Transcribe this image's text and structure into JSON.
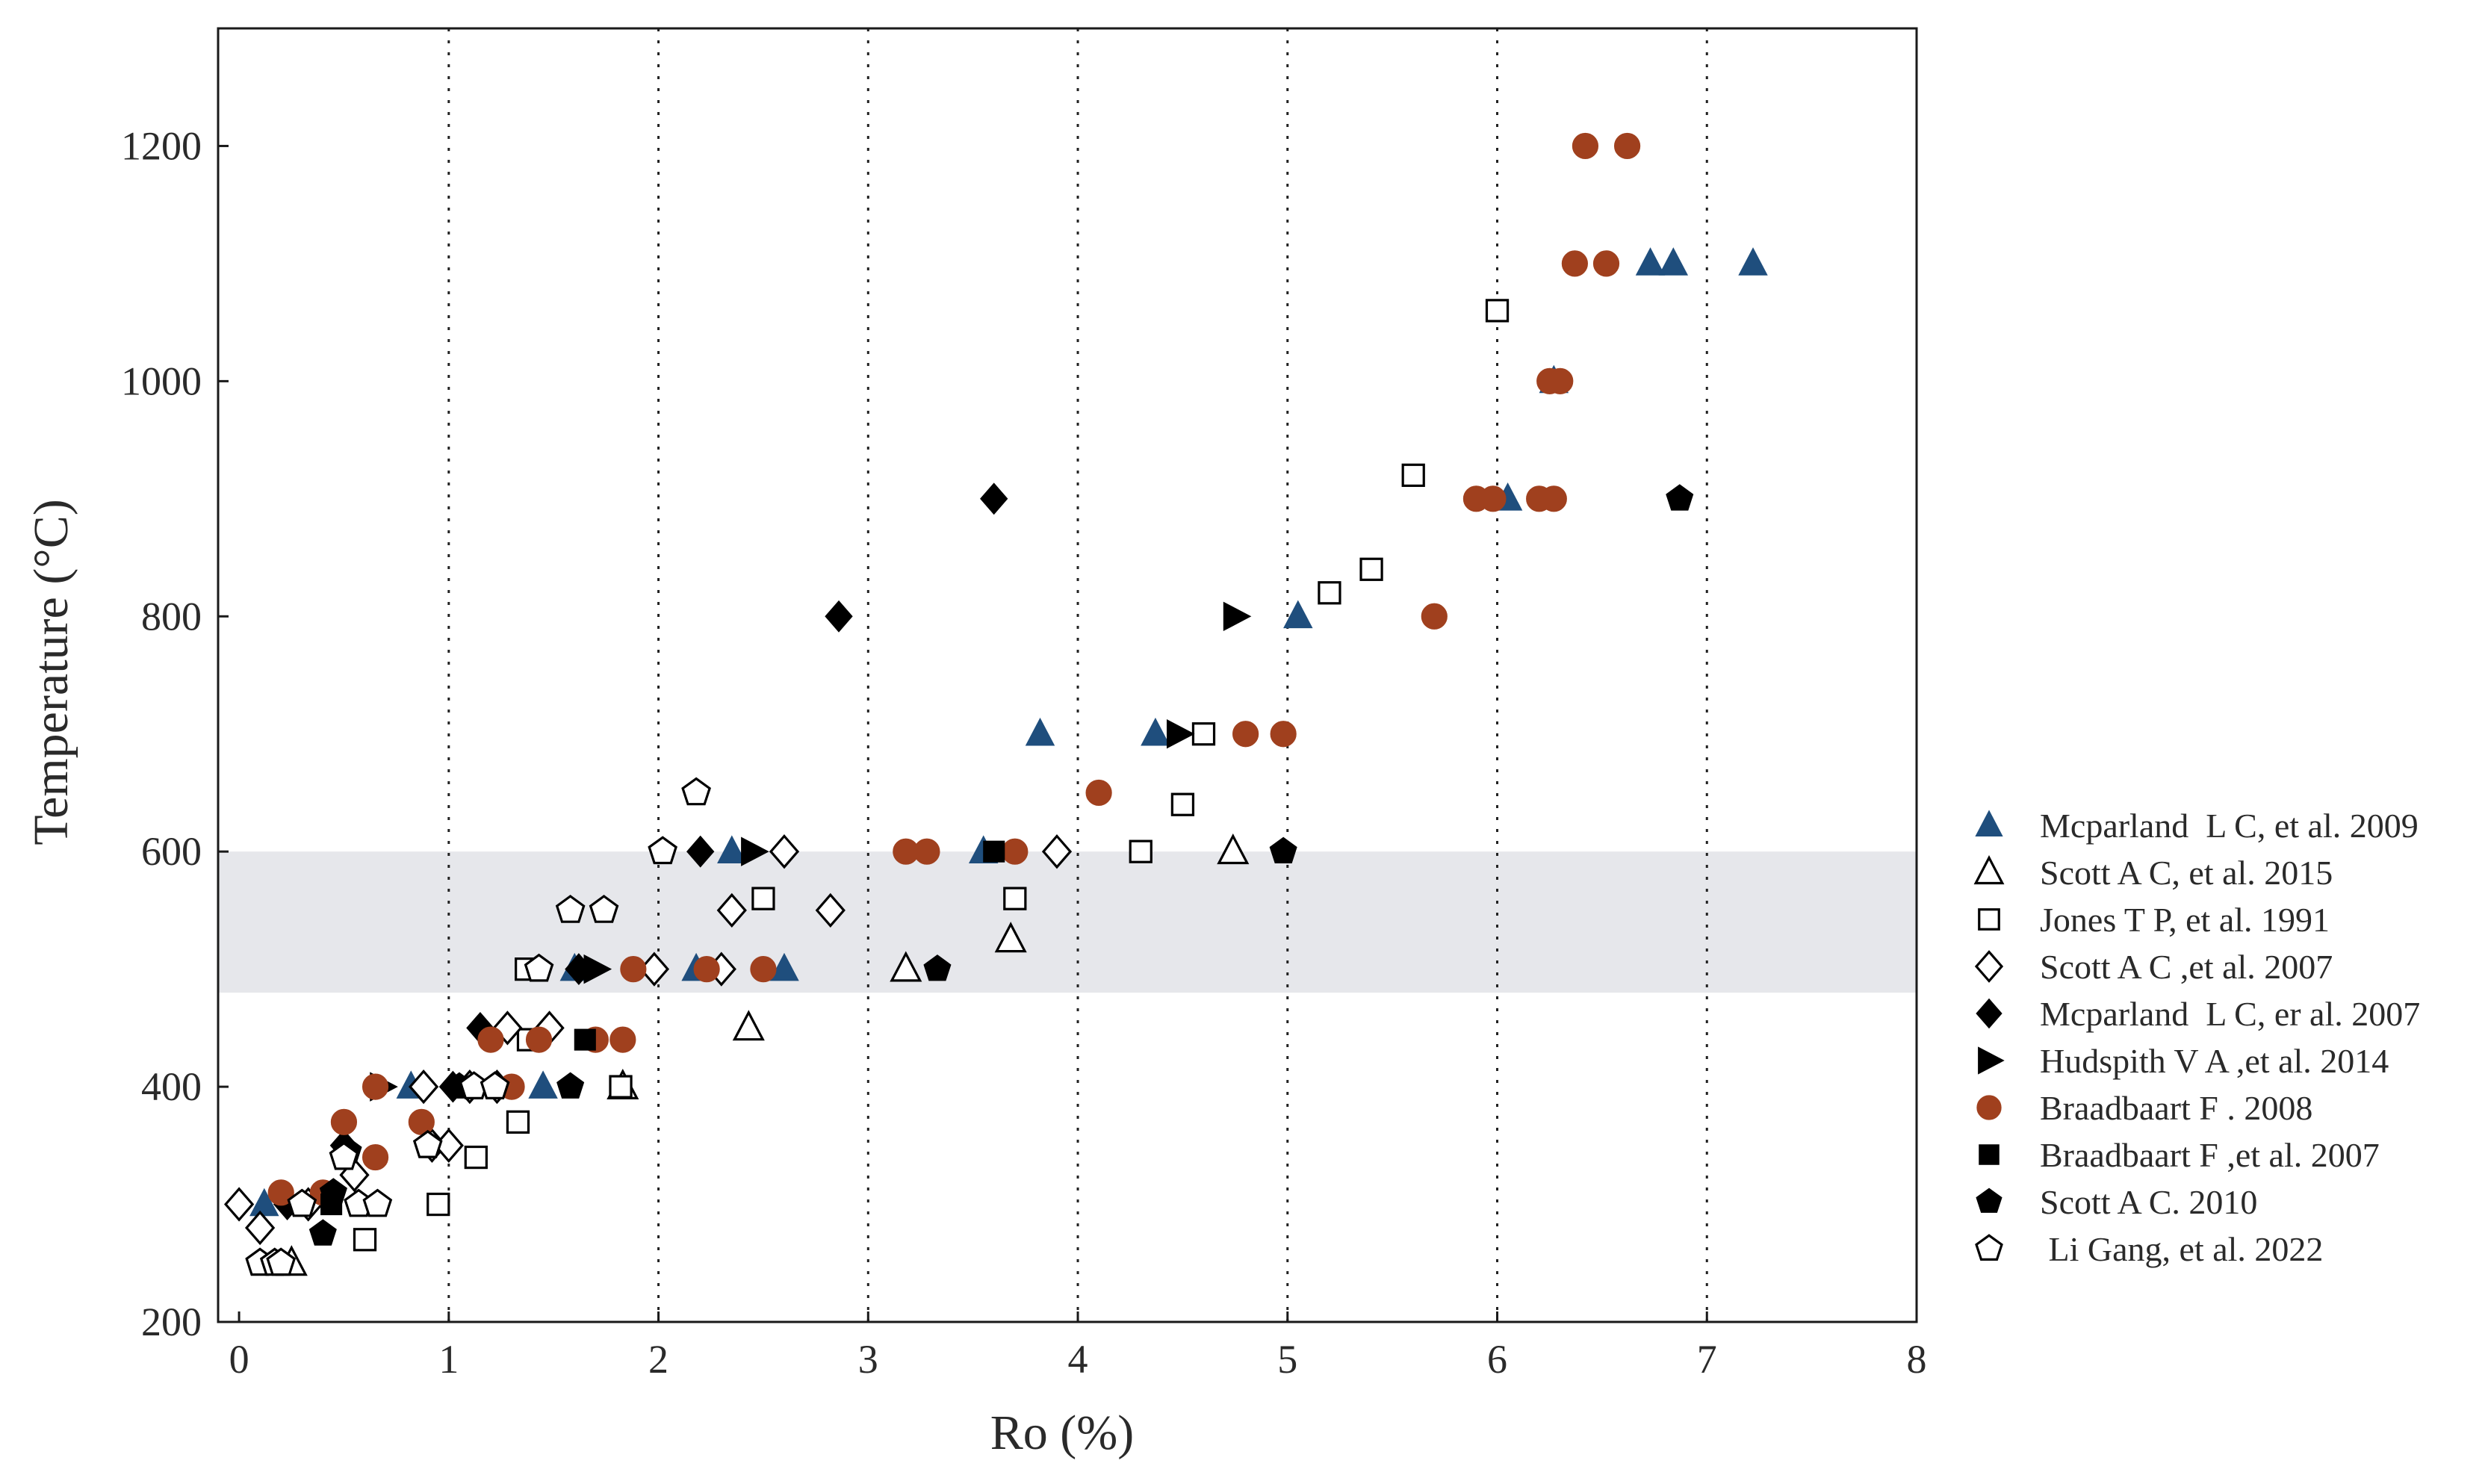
{
  "chart_data": {
    "type": "scatter",
    "title": "",
    "xlabel": "Ro (%)",
    "ylabel": "Temperature (°C)",
    "xlim": [
      -0.1,
      8
    ],
    "ylim": [
      200,
      1300
    ],
    "xticks": [
      0,
      1,
      2,
      3,
      4,
      5,
      6,
      7,
      8
    ],
    "yticks": [
      200,
      400,
      600,
      800,
      1000,
      1200
    ],
    "x_tick_labels": [
      "0",
      "1",
      "2",
      "3",
      "4",
      "5",
      "6",
      "7",
      "8"
    ],
    "y_tick_labels": [
      "200",
      "400",
      "600",
      "800",
      "1000",
      "1200"
    ],
    "vertical_dotted_gridlines_at": [
      1,
      2,
      3,
      4,
      5,
      6,
      7
    ],
    "shaded_band": {
      "y_from": 480,
      "y_to": 600,
      "color": "#e6e7eb"
    },
    "legend_position": "right",
    "series": [
      {
        "name": "Mcparland  L C, et al. 2009",
        "marker": "triangle",
        "filled": true,
        "color": "#1f4e7d",
        "points": [
          [
            0.12,
            300
          ],
          [
            0.82,
            400
          ],
          [
            1.45,
            400
          ],
          [
            1.6,
            500
          ],
          [
            2.18,
            500
          ],
          [
            2.35,
            600
          ],
          [
            2.6,
            500
          ],
          [
            3.55,
            600
          ],
          [
            3.82,
            700
          ],
          [
            4.37,
            700
          ],
          [
            5.05,
            800
          ],
          [
            6.05,
            900
          ],
          [
            6.27,
            1000
          ],
          [
            6.73,
            1100
          ],
          [
            6.84,
            1100
          ],
          [
            7.22,
            1100
          ]
        ]
      },
      {
        "name": "Scott A C, et al. 2015",
        "marker": "triangle",
        "filled": false,
        "color": "#000000",
        "points": [
          [
            0.25,
            250
          ],
          [
            1.83,
            400
          ],
          [
            2.43,
            450
          ],
          [
            3.18,
            500
          ],
          [
            3.68,
            525
          ],
          [
            4.74,
            600
          ]
        ]
      },
      {
        "name": "Jones T P, et al. 1991",
        "marker": "square",
        "filled": false,
        "color": "#000000",
        "points": [
          [
            0.6,
            270
          ],
          [
            0.95,
            300
          ],
          [
            1.13,
            340
          ],
          [
            1.33,
            370
          ],
          [
            1.38,
            440
          ],
          [
            1.37,
            500
          ],
          [
            1.82,
            400
          ],
          [
            2.5,
            560
          ],
          [
            3.7,
            560
          ],
          [
            4.3,
            600
          ],
          [
            4.5,
            640
          ],
          [
            4.6,
            700
          ],
          [
            5.2,
            820
          ],
          [
            5.4,
            840
          ],
          [
            5.6,
            920
          ],
          [
            6.0,
            1060
          ]
        ]
      },
      {
        "name": "Scott A C ,et al. 2007",
        "marker": "diamond",
        "filled": false,
        "color": "#000000",
        "points": [
          [
            0.0,
            300
          ],
          [
            0.1,
            280
          ],
          [
            0.33,
            300
          ],
          [
            0.55,
            325
          ],
          [
            0.88,
            400
          ],
          [
            0.92,
            350
          ],
          [
            1.0,
            350
          ],
          [
            1.1,
            400
          ],
          [
            1.23,
            400
          ],
          [
            1.28,
            450
          ],
          [
            1.48,
            450
          ],
          [
            1.98,
            500
          ],
          [
            2.3,
            500
          ],
          [
            2.35,
            550
          ],
          [
            2.6,
            600
          ],
          [
            2.82,
            550
          ],
          [
            3.9,
            600
          ]
        ]
      },
      {
        "name": "Mcparland  L C, er al. 2007",
        "marker": "diamond",
        "filled": true,
        "color": "#000000",
        "points": [
          [
            0.23,
            300
          ],
          [
            0.5,
            350
          ],
          [
            1.02,
            400
          ],
          [
            1.15,
            450
          ],
          [
            1.62,
            500
          ],
          [
            2.2,
            600
          ],
          [
            2.86,
            800
          ],
          [
            3.6,
            900
          ]
        ]
      },
      {
        "name": "Hudspith V A ,et al. 2014",
        "marker": "triangle-right",
        "filled": true,
        "color": "#000000",
        "points": [
          [
            0.68,
            400
          ],
          [
            1.7,
            500
          ],
          [
            2.45,
            600
          ],
          [
            4.48,
            700
          ],
          [
            4.75,
            800
          ]
        ]
      },
      {
        "name": "Braadbaart F . 2008",
        "marker": "circle",
        "filled": true,
        "color": "#a0401e",
        "points": [
          [
            0.2,
            310
          ],
          [
            0.4,
            310
          ],
          [
            0.5,
            370
          ],
          [
            0.65,
            340
          ],
          [
            0.65,
            400
          ],
          [
            0.87,
            370
          ],
          [
            1.2,
            440
          ],
          [
            1.3,
            400
          ],
          [
            1.43,
            440
          ],
          [
            1.7,
            440
          ],
          [
            1.83,
            440
          ],
          [
            1.88,
            500
          ],
          [
            2.23,
            500
          ],
          [
            2.5,
            500
          ],
          [
            3.18,
            600
          ],
          [
            3.28,
            600
          ],
          [
            3.7,
            600
          ],
          [
            4.1,
            650
          ],
          [
            4.8,
            700
          ],
          [
            4.98,
            700
          ],
          [
            5.7,
            800
          ],
          [
            5.9,
            900
          ],
          [
            5.98,
            900
          ],
          [
            6.2,
            900
          ],
          [
            6.27,
            900
          ],
          [
            6.25,
            1000
          ],
          [
            6.3,
            1000
          ],
          [
            6.37,
            1100
          ],
          [
            6.52,
            1100
          ],
          [
            6.42,
            1200
          ],
          [
            6.62,
            1200
          ]
        ]
      },
      {
        "name": "Braadbaart F ,et al. 2007",
        "marker": "square",
        "filled": true,
        "color": "#000000",
        "points": [
          [
            0.44,
            300
          ],
          [
            1.65,
            440
          ],
          [
            3.6,
            600
          ]
        ]
      },
      {
        "name": "Scott A C. 2010",
        "marker": "pentagon",
        "filled": true,
        "color": "#000000",
        "points": [
          [
            0.4,
            275
          ],
          [
            0.45,
            310
          ],
          [
            0.52,
            345
          ],
          [
            1.05,
            400
          ],
          [
            1.58,
            400
          ],
          [
            3.33,
            500
          ],
          [
            4.98,
            600
          ],
          [
            6.87,
            900
          ]
        ]
      },
      {
        "name": " Li Gang, et al. 2022",
        "marker": "pentagon",
        "filled": false,
        "color": "#000000",
        "points": [
          [
            0.1,
            250
          ],
          [
            0.17,
            250
          ],
          [
            0.2,
            250
          ],
          [
            0.3,
            300
          ],
          [
            0.5,
            340
          ],
          [
            0.57,
            300
          ],
          [
            0.66,
            300
          ],
          [
            0.9,
            350
          ],
          [
            1.12,
            400
          ],
          [
            1.22,
            400
          ],
          [
            1.43,
            500
          ],
          [
            1.58,
            550
          ],
          [
            1.74,
            550
          ],
          [
            2.02,
            600
          ],
          [
            2.18,
            650
          ]
        ]
      }
    ]
  }
}
